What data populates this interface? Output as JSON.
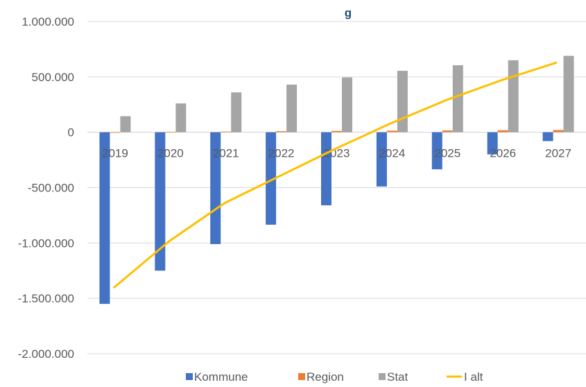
{
  "chart_data": {
    "type": "bar",
    "title": "g",
    "categories": [
      "2019",
      "2020",
      "2021",
      "2022",
      "2023",
      "2024",
      "2025",
      "2026",
      "2027"
    ],
    "y_ticks": [
      "1.000.000",
      "500.000",
      "0",
      "-500.000",
      "-1.000.000",
      "-1.500.000",
      "-2.000.000"
    ],
    "ylim": [
      -2000000,
      1000000
    ],
    "grid": true,
    "legend_position": "bottom",
    "series": [
      {
        "name": "Kommune",
        "kind": "bar",
        "color": "#4472c4",
        "values": [
          -1550000,
          -1250000,
          -1010000,
          -835000,
          -660000,
          -490000,
          -335000,
          -200000,
          -80000
        ]
      },
      {
        "name": "Region",
        "kind": "bar",
        "color": "#ed7d31",
        "values": [
          0,
          3000,
          6000,
          9000,
          12000,
          14000,
          16000,
          18000,
          20000
        ]
      },
      {
        "name": "Stat",
        "kind": "bar",
        "color": "#a5a5a5",
        "values": [
          145000,
          260000,
          360000,
          430000,
          495000,
          555000,
          605000,
          650000,
          690000
        ]
      },
      {
        "name": "I alt",
        "kind": "line",
        "color": "#ffc000",
        "values": [
          -1405000,
          -985000,
          -640000,
          -395000,
          -150000,
          80000,
          290000,
          470000,
          630000
        ]
      }
    ]
  }
}
